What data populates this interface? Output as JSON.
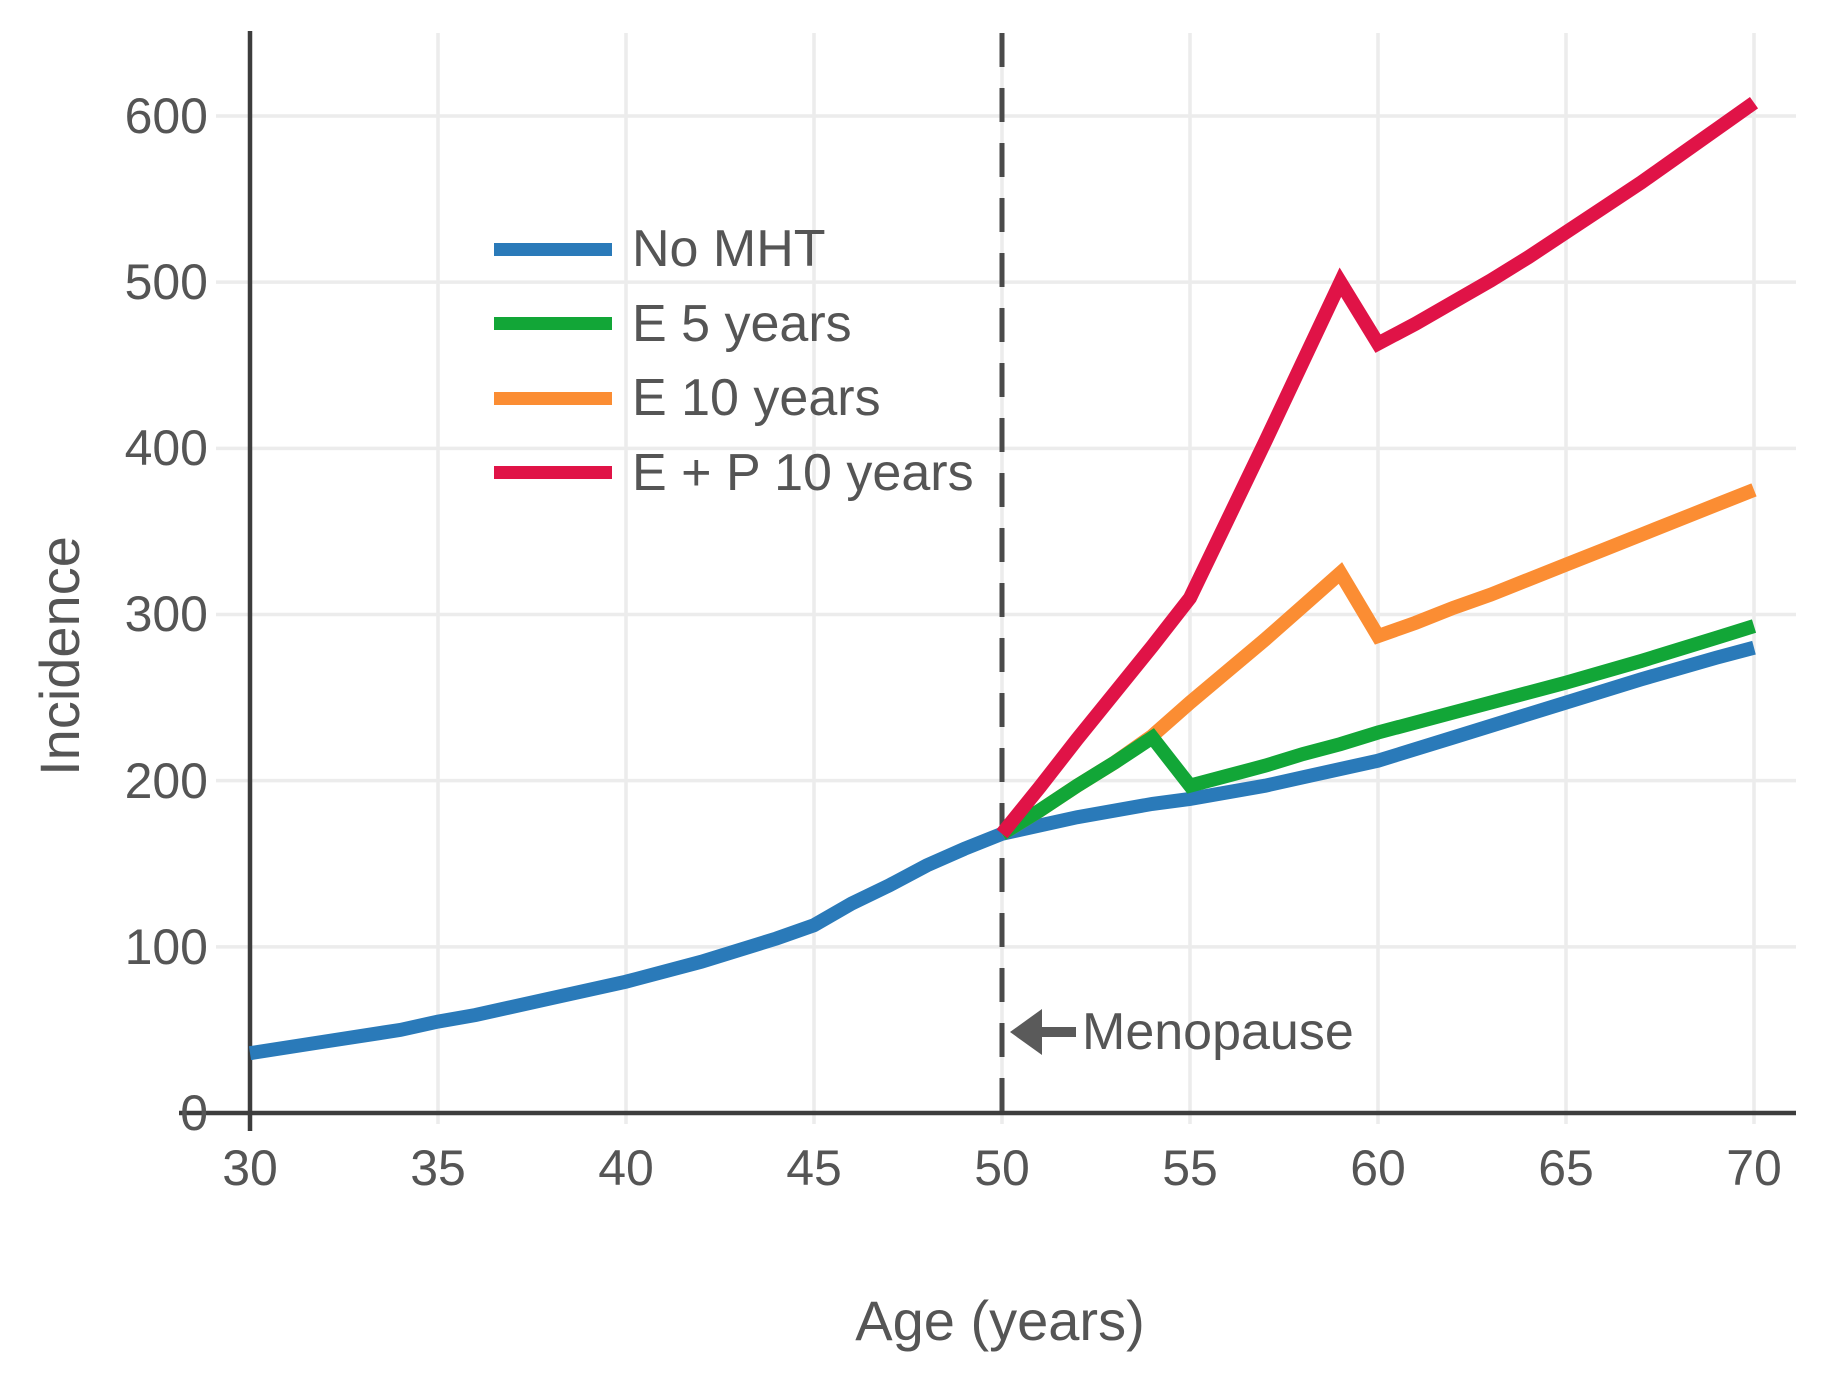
{
  "style": {
    "axis_color": "#3d3d3d",
    "grid_color": "#ececec",
    "text_color": "#555555",
    "dashed_line_color": "#4a4a4a",
    "annotation_arrow_color": "#5a5a5a",
    "background": "#ffffff"
  },
  "axis_titles": {
    "x": "Age (years)",
    "y": "Incidence"
  },
  "annotation": {
    "text": "Menopause"
  },
  "chart_data": {
    "type": "line",
    "title": "",
    "xlabel": "Age (years)",
    "ylabel": "Incidence",
    "xlim": [
      30,
      70
    ],
    "ylim": [
      0,
      650
    ],
    "x_ticks": [
      30,
      35,
      40,
      45,
      50,
      55,
      60,
      65,
      70
    ],
    "y_ticks": [
      0,
      100,
      200,
      300,
      400,
      500,
      600
    ],
    "grid": true,
    "legend_position": "upper-left-inside",
    "reference_line": {
      "axis": "x",
      "value": 50,
      "style": "dashed",
      "label": "Menopause"
    },
    "series": [
      {
        "name": "No MHT",
        "color": "#2a7ab9",
        "points": [
          [
            30,
            36
          ],
          [
            32,
            43
          ],
          [
            34,
            50
          ],
          [
            35,
            55
          ],
          [
            36,
            59
          ],
          [
            38,
            69
          ],
          [
            40,
            79
          ],
          [
            42,
            91
          ],
          [
            44,
            105
          ],
          [
            45,
            113
          ],
          [
            46,
            126
          ],
          [
            47,
            137
          ],
          [
            48,
            149
          ],
          [
            49,
            159
          ],
          [
            50,
            168
          ],
          [
            52,
            178
          ],
          [
            54,
            186
          ],
          [
            55,
            189
          ],
          [
            57,
            197
          ],
          [
            58,
            202
          ],
          [
            60,
            212
          ],
          [
            62,
            226
          ],
          [
            64,
            240
          ],
          [
            65,
            247
          ],
          [
            67,
            261
          ],
          [
            69,
            274
          ],
          [
            70,
            280
          ]
        ]
      },
      {
        "name": "E 5 years",
        "color": "#12a637",
        "points": [
          [
            50,
            168
          ],
          [
            51,
            182
          ],
          [
            52,
            197
          ],
          [
            53,
            211
          ],
          [
            54,
            226
          ],
          [
            55,
            197
          ],
          [
            56,
            203
          ],
          [
            57,
            209
          ],
          [
            58,
            216
          ],
          [
            59,
            222
          ],
          [
            60,
            229
          ],
          [
            62,
            241
          ],
          [
            64,
            253
          ],
          [
            65,
            259
          ],
          [
            67,
            272
          ],
          [
            69,
            286
          ],
          [
            70,
            293
          ]
        ]
      },
      {
        "name": "E 10 years",
        "color": "#fb8d33",
        "points": [
          [
            50,
            168
          ],
          [
            51,
            182
          ],
          [
            52,
            197
          ],
          [
            53,
            211
          ],
          [
            54,
            227
          ],
          [
            55,
            247
          ],
          [
            56,
            266
          ],
          [
            57,
            285
          ],
          [
            58,
            305
          ],
          [
            59,
            325
          ],
          [
            60,
            287
          ],
          [
            61,
            295
          ],
          [
            62,
            304
          ],
          [
            63,
            312
          ],
          [
            64,
            321
          ],
          [
            65,
            330
          ],
          [
            66,
            339
          ],
          [
            67,
            348
          ],
          [
            68,
            357
          ],
          [
            69,
            366
          ],
          [
            70,
            375
          ]
        ]
      },
      {
        "name": "E + P 10 years",
        "color": "#e01347",
        "points": [
          [
            50,
            168
          ],
          [
            51,
            196
          ],
          [
            52,
            225
          ],
          [
            53,
            253
          ],
          [
            54,
            281
          ],
          [
            55,
            310
          ],
          [
            56,
            357
          ],
          [
            57,
            404
          ],
          [
            58,
            452
          ],
          [
            59,
            500
          ],
          [
            60,
            463
          ],
          [
            61,
            475
          ],
          [
            62,
            488
          ],
          [
            63,
            501
          ],
          [
            64,
            515
          ],
          [
            65,
            530
          ],
          [
            66,
            545
          ],
          [
            67,
            560
          ],
          [
            68,
            576
          ],
          [
            69,
            592
          ],
          [
            70,
            608
          ]
        ]
      }
    ]
  }
}
